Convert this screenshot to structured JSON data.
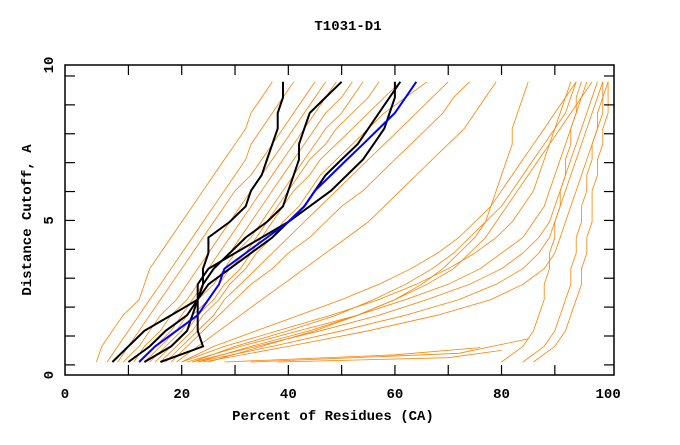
{
  "chart_data": {
    "type": "line",
    "title": "T1031-D1",
    "xlabel": "Percent of Residues (CA)",
    "ylabel": "Distance Cutoff, A",
    "xlim": [
      -1.9,
      101.1
    ],
    "ylim": [
      -0.35,
      10.38
    ],
    "xticks": [
      0,
      20,
      40,
      60,
      80,
      100
    ],
    "yticks": [
      0,
      5,
      10
    ],
    "grid": false,
    "colors": {
      "models": "#ff8000",
      "highlight_black": "#000000",
      "highlight_blue": "#0000ff"
    },
    "cutoffs": [
      0.1,
      0.64,
      1.18,
      1.72,
      2.26,
      2.79,
      3.33,
      3.87,
      4.41,
      4.95,
      5.49,
      6.03,
      6.57,
      7.11,
      7.64,
      8.18,
      8.72,
      9.26,
      9.8
    ],
    "orange_series": [
      [
        4,
        5,
        7,
        9,
        12,
        13,
        14,
        16,
        18,
        20,
        22,
        24,
        26,
        28,
        30,
        32,
        33,
        35,
        37
      ],
      [
        6,
        8,
        10,
        12,
        14,
        16,
        18,
        20,
        22,
        24,
        26,
        28,
        30,
        32,
        33,
        35,
        37,
        39,
        41
      ],
      [
        8,
        10,
        12,
        14,
        16,
        18,
        20,
        22,
        24,
        26,
        28,
        30,
        33,
        35,
        37,
        39,
        41,
        43,
        45
      ],
      [
        9,
        12,
        14,
        16,
        19,
        21,
        23,
        25,
        27,
        29,
        31,
        33,
        35,
        37,
        39,
        41,
        43,
        45,
        47
      ],
      [
        11,
        13,
        16,
        18,
        21,
        23,
        25,
        27,
        29,
        31,
        33,
        35,
        37,
        39,
        41,
        43,
        45,
        47,
        49
      ],
      [
        12,
        15,
        18,
        20,
        22,
        24,
        26,
        29,
        31,
        33,
        35,
        37,
        39,
        41,
        43,
        45,
        47,
        50,
        52
      ],
      [
        13,
        16,
        19,
        21,
        23,
        26,
        28,
        30,
        33,
        35,
        37,
        39,
        41,
        43,
        45,
        47,
        50,
        52,
        54
      ],
      [
        14,
        17,
        20,
        22,
        25,
        27,
        29,
        32,
        34,
        36,
        38,
        40,
        42,
        44,
        47,
        49,
        52,
        55,
        57
      ],
      [
        15,
        18,
        21,
        23,
        26,
        28,
        31,
        33,
        35,
        37,
        39,
        41,
        44,
        46,
        49,
        52,
        55,
        58,
        61
      ],
      [
        16,
        19,
        22,
        24,
        27,
        29,
        32,
        34,
        37,
        39,
        42,
        44,
        46,
        49,
        52,
        55,
        58,
        62,
        66
      ],
      [
        17,
        20,
        23,
        26,
        28,
        31,
        34,
        37,
        40,
        43,
        46,
        49,
        52,
        55,
        58,
        61,
        64,
        67,
        70
      ],
      [
        18,
        21,
        24,
        27,
        30,
        33,
        37,
        40,
        44,
        47,
        50,
        54,
        57,
        60,
        63,
        66,
        69,
        71,
        74
      ],
      [
        19,
        23,
        27,
        31,
        35,
        39,
        43,
        47,
        51,
        55,
        58,
        61,
        64,
        67,
        70,
        73,
        75,
        77,
        79
      ],
      [
        20,
        28,
        38,
        48,
        57,
        64,
        70,
        75,
        79,
        82,
        84,
        86,
        87,
        88,
        89,
        90,
        91,
        92,
        93
      ],
      [
        21,
        31,
        42,
        53,
        62,
        70,
        76,
        80,
        84,
        86,
        88,
        89,
        90,
        91,
        92,
        93,
        94,
        95,
        96
      ],
      [
        22,
        34,
        46,
        57,
        66,
        74,
        80,
        84,
        87,
        89,
        90,
        91,
        92,
        93,
        94,
        95,
        96,
        97,
        98
      ],
      [
        23,
        37,
        50,
        62,
        72,
        79,
        84,
        87,
        89,
        90,
        91,
        92,
        93,
        94,
        95,
        96,
        97,
        98,
        99
      ],
      [
        24,
        40,
        55,
        68,
        78,
        84,
        88,
        90,
        91,
        92,
        93,
        94,
        95,
        96,
        97,
        98,
        99,
        99,
        100
      ],
      [
        22,
        30,
        40,
        49,
        56,
        62,
        67,
        71,
        74,
        77,
        80,
        82,
        84,
        86,
        88,
        90,
        92,
        93,
        94
      ],
      [
        23,
        33,
        44,
        53,
        60,
        66,
        71,
        74,
        77,
        79,
        81,
        83,
        85,
        87,
        89,
        91,
        93,
        95,
        97
      ],
      [
        20,
        26,
        34,
        42,
        50,
        57,
        63,
        68,
        72,
        75,
        78,
        80,
        82,
        84,
        86,
        88,
        90,
        92,
        94
      ],
      [
        25,
        35,
        45,
        53,
        60,
        65,
        69,
        72,
        75,
        77,
        78,
        79,
        80,
        81,
        82,
        82,
        83,
        84,
        85
      ],
      [
        80,
        84,
        86,
        87,
        88,
        88,
        89,
        89,
        90,
        90,
        91,
        91,
        92,
        92,
        93,
        93,
        94,
        94,
        95
      ],
      [
        84,
        88,
        90,
        91,
        92,
        93,
        93,
        94,
        94,
        95,
        95,
        96,
        96,
        97,
        97,
        98,
        98,
        99,
        99
      ],
      [
        86,
        90,
        92,
        93,
        94,
        95,
        95,
        96,
        96,
        97,
        97,
        97,
        98,
        98,
        99,
        99,
        100,
        100,
        100
      ]
    ],
    "orange_flat_series": [
      [
        [
          28,
          0.1
        ],
        [
          60,
          0.35
        ],
        [
          76,
          0.6
        ]
      ],
      [
        [
          33,
          0.1
        ],
        [
          72,
          0.4
        ],
        [
          85,
          0.9
        ]
      ],
      [
        [
          38,
          0.1
        ],
        [
          70,
          0.25
        ],
        [
          80,
          0.5
        ]
      ]
    ],
    "black_series": [
      [
        7,
        10,
        13,
        18,
        23,
        24,
        24,
        25,
        25,
        29,
        32,
        33,
        35,
        36,
        37,
        38,
        38,
        39,
        39
      ],
      [
        13,
        18,
        21,
        22,
        23,
        24,
        26,
        29,
        32,
        36,
        39,
        40,
        41,
        42,
        42,
        43,
        44,
        47,
        50
      ],
      [
        10,
        14,
        17,
        21,
        23,
        25,
        29,
        33,
        37,
        40,
        43,
        45,
        47,
        50,
        53,
        55,
        57,
        59,
        61
      ],
      [
        16,
        24,
        23,
        23,
        23,
        23,
        25,
        30,
        35,
        40,
        44,
        48,
        51,
        54,
        56,
        58,
        59,
        60,
        60
      ]
    ],
    "blue_series": [
      12,
      15,
      19,
      23,
      25,
      27,
      28,
      32,
      36,
      40,
      43,
      45,
      48,
      51,
      54,
      57,
      60,
      62,
      64
    ]
  }
}
